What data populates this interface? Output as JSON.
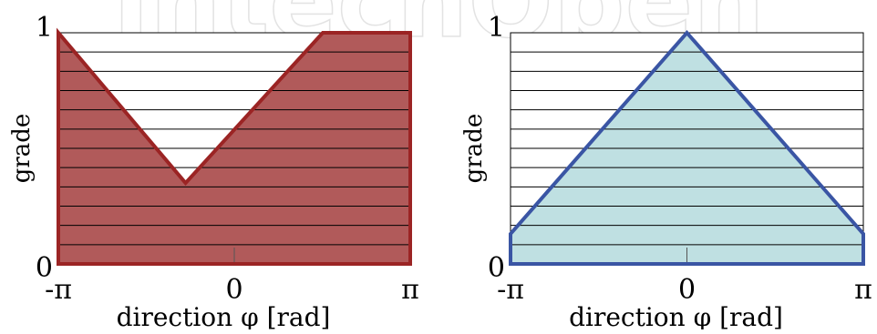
{
  "watermark": "IntechOpen",
  "chart_data": [
    {
      "type": "area",
      "xlabel": "direction  φ [rad]",
      "ylabel": "grade",
      "x_tick_labels": [
        "-π",
        "0",
        "π"
      ],
      "y_tick_labels": [
        "0",
        "1"
      ],
      "xlim": [
        -3.1416,
        3.1416
      ],
      "ylim": [
        0,
        1
      ],
      "grid": "horizontal",
      "grid_lines": 11,
      "fill_color": "#b15a5a",
      "line_color": "#9b2424",
      "points": [
        {
          "x": -3.1416,
          "y": 1.0
        },
        {
          "x": -0.87,
          "y": 0.35
        },
        {
          "x": 1.58,
          "y": 1.0
        },
        {
          "x": 3.1416,
          "y": 1.0
        }
      ]
    },
    {
      "type": "area",
      "xlabel": "direction  φ [rad]",
      "ylabel": "grade",
      "x_tick_labels": [
        "-π",
        "0",
        "π"
      ],
      "y_tick_labels": [
        "0",
        "1"
      ],
      "xlim": [
        -3.1416,
        3.1416
      ],
      "ylim": [
        0,
        1
      ],
      "grid": "horizontal",
      "grid_lines": 11,
      "fill_color": "#bfe0e2",
      "line_color": "#3a55a4",
      "points": [
        {
          "x": -3.1416,
          "y": 0.13
        },
        {
          "x": 0.0,
          "y": 1.0
        },
        {
          "x": 3.1416,
          "y": 0.13
        }
      ]
    }
  ]
}
